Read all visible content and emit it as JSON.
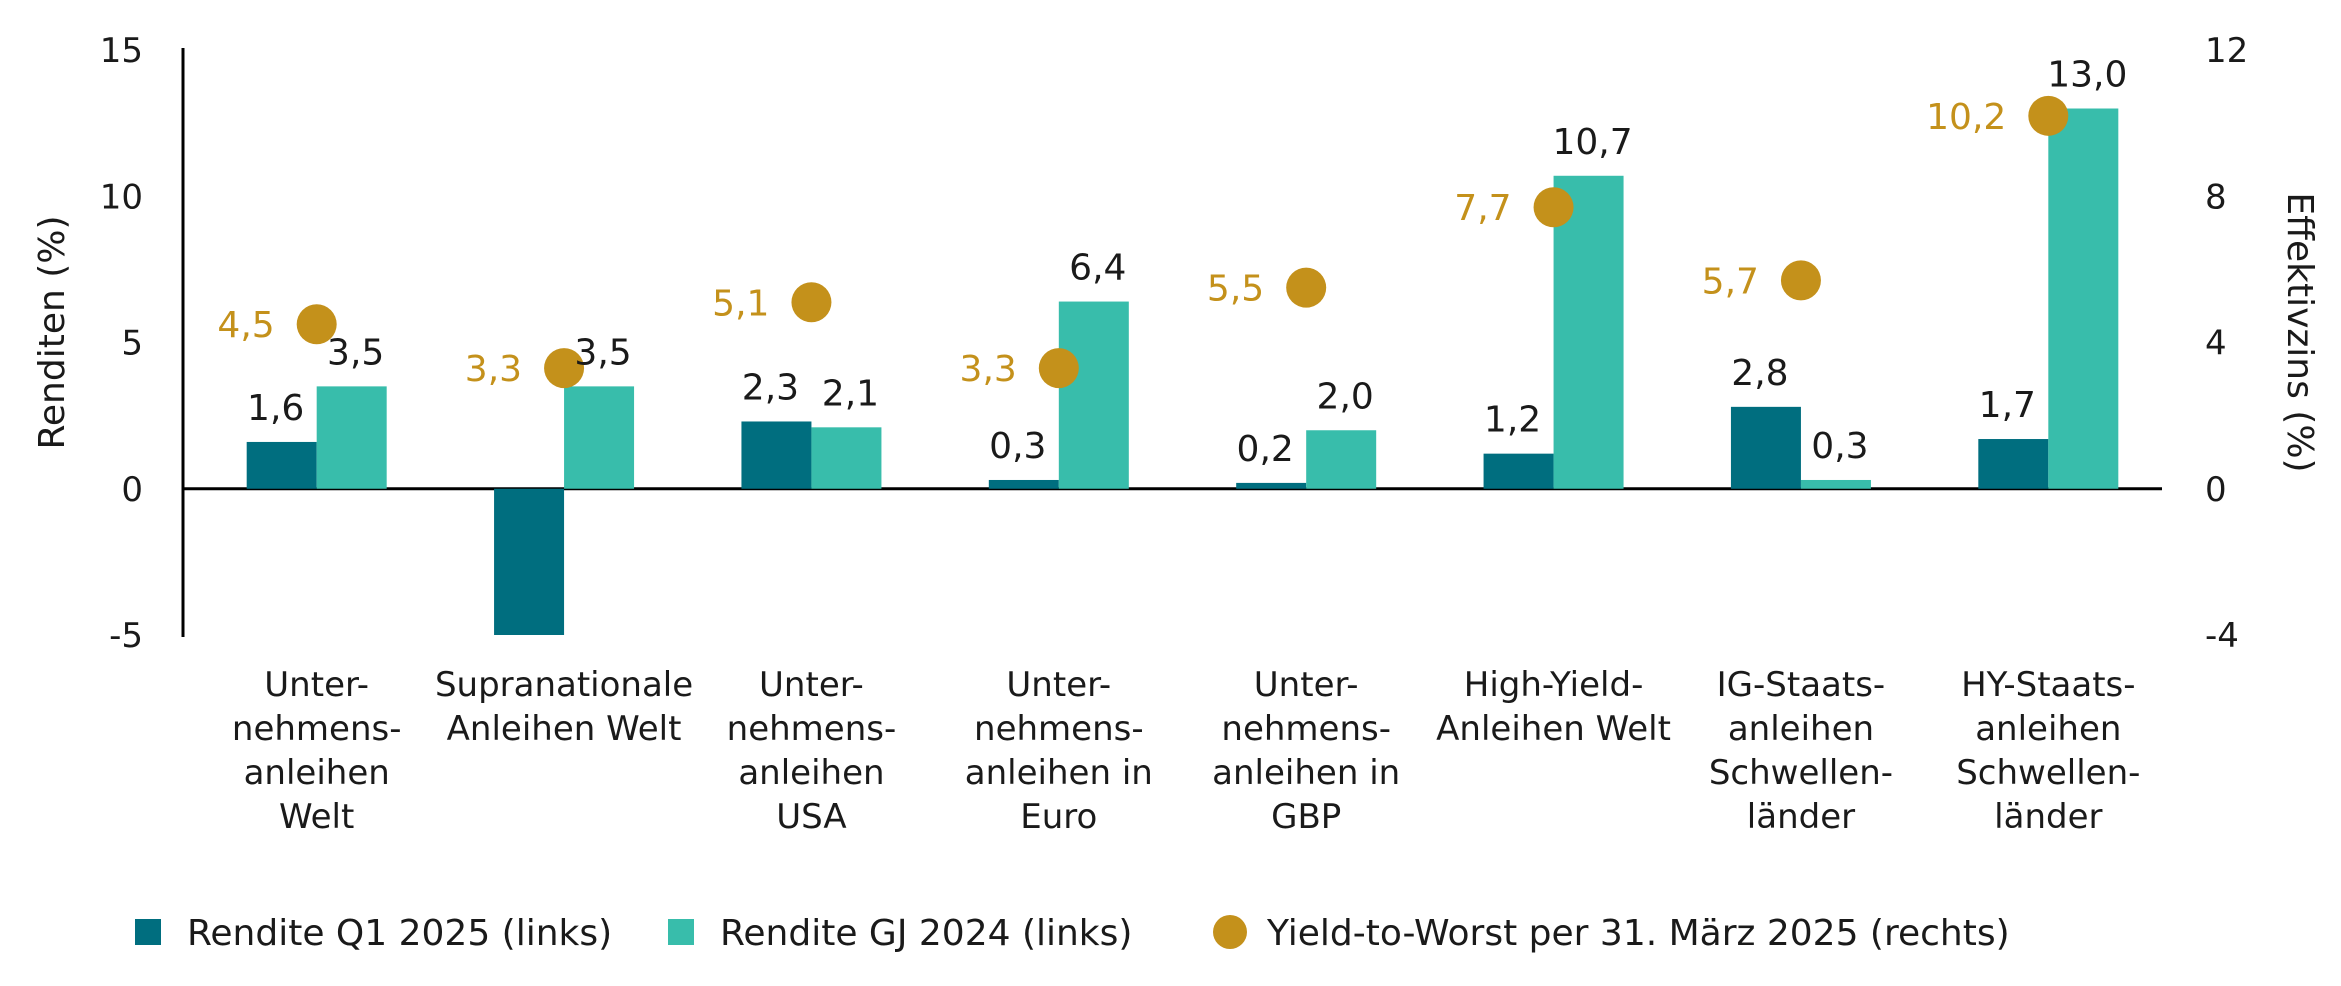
{
  "chart_data": {
    "type": "bar",
    "categories": [
      [
        "Unter-",
        "nehmens-",
        "anleihen",
        "Welt"
      ],
      [
        "Supranationale",
        "Anleihen Welt"
      ],
      [
        "Unter-",
        "nehmens-",
        "anleihen",
        "USA"
      ],
      [
        "Unter-",
        "nehmens-",
        "anleihen in",
        "Euro"
      ],
      [
        "Unter-",
        "nehmens-",
        "anleihen in",
        "GBP"
      ],
      [
        "High-Yield-",
        "Anleihen Welt"
      ],
      [
        "IG-Staats-",
        "anleihen",
        "Schwellen-",
        "länder"
      ],
      [
        "HY-Staats-",
        "anleihen",
        "Schwellen-",
        "länder"
      ]
    ],
    "series": [
      {
        "name": "Rendite Q1 2025 (links)",
        "axis": "left",
        "color": "#006e7f",
        "values": [
          1.6,
          -5.0,
          2.3,
          0.3,
          0.2,
          1.2,
          2.8,
          1.7
        ],
        "labels": [
          "1,6",
          "",
          "2,3",
          "0,3",
          "0,2",
          "1,2",
          "2,8",
          "1,7"
        ]
      },
      {
        "name": "Rendite GJ 2024 (links)",
        "axis": "left",
        "color": "#38bdab",
        "values": [
          3.5,
          3.5,
          2.1,
          6.4,
          2.0,
          10.7,
          0.3,
          13.0
        ],
        "labels": [
          "3,5",
          "3,5",
          "2,1",
          "6,4",
          "2,0",
          "10,7",
          "0,3",
          "13,0"
        ]
      },
      {
        "name": "Yield-to-Worst per 31. März 2025 (rechts)",
        "axis": "right",
        "type": "scatter",
        "color": "#c4911b",
        "values": [
          4.5,
          3.3,
          5.1,
          3.3,
          5.5,
          7.7,
          5.7,
          10.2
        ],
        "labels": [
          "4,5",
          "3,3",
          "5,1",
          "3,3",
          "5,5",
          "7,7",
          "5,7",
          "10,2"
        ]
      }
    ],
    "ylabel": "Renditen (%)",
    "ylabel_right": "Effektivzins (%)",
    "ylim": [
      -5,
      15
    ],
    "ylim_right": [
      -4,
      12
    ],
    "yticks": [
      15,
      10,
      5,
      0,
      -5
    ],
    "yticks_right": [
      12,
      8,
      4,
      0,
      -4
    ],
    "grid": false,
    "legend_position": "bottom"
  }
}
